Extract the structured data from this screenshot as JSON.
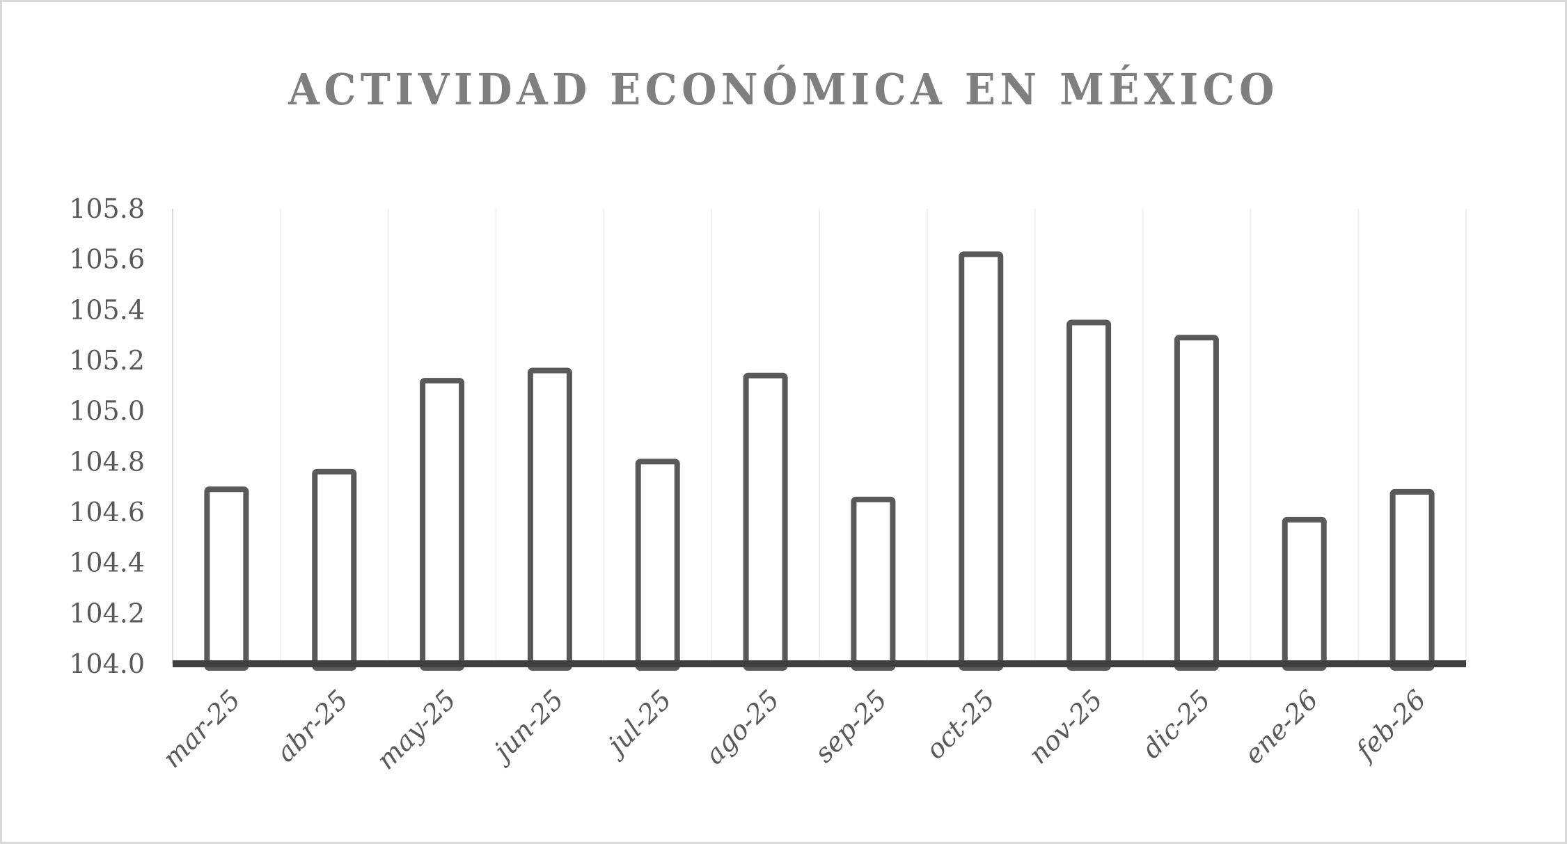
{
  "chart_data": {
    "type": "bar",
    "title": "ACTIVIDAD ECONÓMICA EN MÉXICO",
    "xlabel": "",
    "ylabel": "",
    "categories": [
      "mar-25",
      "abr-25",
      "may-25",
      "jun-25",
      "jul-25",
      "ago-25",
      "sep-25",
      "oct-25",
      "nov-25",
      "dic-25",
      "ene-26",
      "feb-26"
    ],
    "values": [
      104.69,
      104.76,
      105.12,
      105.16,
      104.8,
      105.14,
      104.65,
      105.62,
      105.35,
      105.29,
      104.57,
      104.68
    ],
    "ylim": [
      104.0,
      105.8
    ],
    "yticks": [
      "104.0",
      "104.2",
      "104.4",
      "104.6",
      "104.8",
      "105.0",
      "105.2",
      "105.4",
      "105.6",
      "105.8"
    ],
    "grid": {
      "vertical": true,
      "horizontal": false
    },
    "legend": null,
    "bar_style": {
      "fill": "#ffffff",
      "stroke": "#595959"
    },
    "colors": {
      "title": "#7f7f7f",
      "axis": "#404040",
      "gridline": "#f0f0f0",
      "tick_text": "#595959",
      "border": "#d9d9d9"
    }
  }
}
